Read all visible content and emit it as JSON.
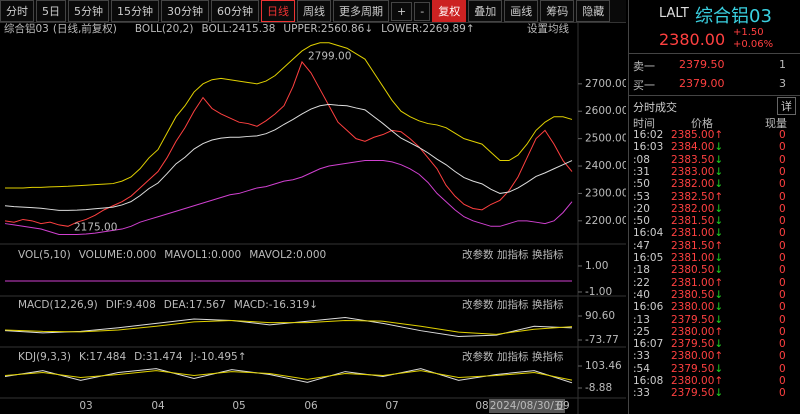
{
  "toolbar": {
    "buttons": [
      "分时",
      "5日",
      "5分钟",
      "15分钟",
      "30分钟",
      "60分钟",
      "日线",
      "周线",
      "更多周期",
      "+",
      "-",
      "复权",
      "叠加",
      "画线",
      "筹码",
      "隐藏"
    ]
  },
  "panel_buttons": [
    "改参数",
    "加指标",
    "换指标"
  ],
  "chart_data": [
    {
      "type": "line",
      "title": "综合铝03",
      "subtitle": "(日线,前复权)",
      "indicator": "BOLL(20,2)",
      "settings_label": "设置均线",
      "categories": [
        null,
        null,
        null,
        null,
        null,
        null,
        null,
        null,
        null,
        "03",
        null,
        null,
        null,
        null,
        null,
        null,
        null,
        "04",
        null,
        null,
        null,
        null,
        null,
        null,
        null,
        null,
        "05",
        null,
        null,
        null,
        null,
        null,
        null,
        null,
        "06",
        null,
        null,
        null,
        null,
        null,
        null,
        null,
        null,
        "07",
        null,
        null,
        null,
        null,
        null,
        null,
        null,
        null,
        null,
        "08",
        null,
        null,
        null,
        null,
        "2024/08/30/五",
        null,
        null,
        null,
        "09",
        null
      ],
      "series": [
        {
          "color": "#ff4040",
          "values": [
            2200,
            2195,
            2205,
            2200,
            2190,
            2195,
            2185,
            2180,
            2195,
            2205,
            2220,
            2240,
            2255,
            2270,
            2290,
            2320,
            2350,
            2380,
            2430,
            2490,
            2540,
            2600,
            2650,
            2610,
            2590,
            2575,
            2560,
            2555,
            2545,
            2565,
            2590,
            2620,
            2690,
            2780,
            2740,
            2680,
            2620,
            2560,
            2530,
            2500,
            2490,
            2505,
            2515,
            2530,
            2525,
            2500,
            2470,
            2430,
            2390,
            2330,
            2290,
            2260,
            2245,
            2240,
            2260,
            2275,
            2310,
            2360,
            2430,
            2500,
            2530,
            2480,
            2420,
            2380
          ]
        },
        {
          "name": "BOLL:2415.38",
          "color": "#dddddd",
          "values": [
            2255,
            2252,
            2250,
            2248,
            2246,
            2242,
            2238,
            2238,
            2239,
            2241,
            2244,
            2247,
            2250,
            2258,
            2270,
            2292,
            2318,
            2338,
            2372,
            2408,
            2432,
            2462,
            2482,
            2495,
            2502,
            2505,
            2505,
            2508,
            2510,
            2518,
            2532,
            2552,
            2570,
            2590,
            2608,
            2620,
            2625,
            2622,
            2620,
            2612,
            2605,
            2580,
            2555,
            2528,
            2502,
            2485,
            2468,
            2448,
            2425,
            2405,
            2380,
            2358,
            2345,
            2335,
            2315,
            2300,
            2305,
            2320,
            2340,
            2362,
            2375,
            2390,
            2405,
            2420
          ]
        },
        {
          "name": "UPPER:2560.86↓",
          "color": "#e0d000",
          "values": [
            2320,
            2320,
            2320,
            2322,
            2322,
            2324,
            2325,
            2326,
            2328,
            2330,
            2332,
            2334,
            2336,
            2345,
            2360,
            2390,
            2430,
            2460,
            2520,
            2580,
            2620,
            2670,
            2700,
            2715,
            2720,
            2715,
            2710,
            2705,
            2700,
            2710,
            2730,
            2760,
            2790,
            2820,
            2840,
            2850,
            2850,
            2840,
            2830,
            2810,
            2790,
            2740,
            2690,
            2640,
            2600,
            2580,
            2565,
            2555,
            2550,
            2540,
            2520,
            2500,
            2490,
            2480,
            2450,
            2420,
            2420,
            2440,
            2480,
            2530,
            2560,
            2580,
            2580,
            2570
          ]
        },
        {
          "name": "LOWER:2269.89↑",
          "color": "#d040d0",
          "values": [
            2190,
            2185,
            2180,
            2175,
            2170,
            2160,
            2150,
            2150,
            2150,
            2152,
            2155,
            2160,
            2165,
            2170,
            2180,
            2195,
            2205,
            2215,
            2225,
            2235,
            2245,
            2255,
            2265,
            2275,
            2285,
            2295,
            2300,
            2310,
            2320,
            2325,
            2335,
            2345,
            2350,
            2360,
            2375,
            2390,
            2400,
            2405,
            2410,
            2415,
            2420,
            2420,
            2420,
            2415,
            2405,
            2390,
            2370,
            2340,
            2300,
            2270,
            2240,
            2215,
            2200,
            2190,
            2180,
            2180,
            2190,
            2200,
            2200,
            2195,
            2190,
            2200,
            2230,
            2270
          ]
        }
      ],
      "annotations": [
        {
          "value": 2799,
          "label": "2799.00"
        },
        {
          "value": 2175,
          "label": "2175.00"
        }
      ],
      "ylim": [
        2130,
        2860
      ],
      "yticks": [
        {
          "value": 2200,
          "label": "2200.00"
        },
        {
          "value": 2300,
          "label": "2300.00"
        },
        {
          "value": 2400,
          "label": "2400.00"
        },
        {
          "value": 2500,
          "label": "2500.00"
        },
        {
          "value": 2600,
          "label": "2600.00"
        },
        {
          "value": 2700,
          "label": "2700.00"
        }
      ]
    },
    {
      "type": "line",
      "title": "VOL(5,10)",
      "legend": [
        {
          "text": "VOLUME:0.000",
          "color": "#dddddd"
        },
        {
          "text": "MAVOL1:0.000",
          "color": "#e0d000"
        },
        {
          "text": "MAVOL2:0.000",
          "color": "#d040d0"
        }
      ],
      "series": [],
      "ylim": [
        -1.31,
        2.38
      ],
      "yticks": [
        {
          "value": 1,
          "label": "1.00"
        },
        {
          "value": -1,
          "label": "-1.00"
        }
      ]
    },
    {
      "type": "line",
      "title": "MACD(12,26,9)",
      "legend": [
        {
          "text": "DIF:9.408",
          "color": "#dddddd"
        },
        {
          "text": "DEA:17.567",
          "color": "#e0d000"
        },
        {
          "text": "MACD:-16.319↓",
          "color": "#d040d0"
        }
      ],
      "series": [
        {
          "color": "#dddddd",
          "values": [
            -10,
            -25,
            -15,
            10,
            40,
            70,
            60,
            30,
            55,
            80,
            40,
            -10,
            -50,
            -40,
            20,
            9.4
          ]
        },
        {
          "color": "#e0d000",
          "values": [
            -5,
            -15,
            -18,
            -5,
            20,
            50,
            60,
            45,
            45,
            60,
            55,
            20,
            -20,
            -35,
            0,
            17.6
          ]
        }
      ],
      "ylim": [
        -128.6,
        213.9
      ],
      "yticks": [
        {
          "value": 90.6,
          "label": "90.60"
        },
        -73.77
      ]
    },
    {
      "type": "line",
      "title": "KDJ(9,3,3)",
      "legend": [
        {
          "text": "K:17.484",
          "color": "#dddddd"
        },
        {
          "text": "D:31.474",
          "color": "#e0d000"
        },
        {
          "text": "J:-10.495↑",
          "color": "#d040d0"
        }
      ],
      "series": [
        {
          "color": "#dddddd",
          "values": [
            50,
            80,
            30,
            70,
            90,
            40,
            85,
            60,
            20,
            75,
            50,
            90,
            30,
            60,
            80,
            17.5
          ]
        },
        {
          "color": "#e0d000",
          "values": [
            55,
            70,
            45,
            60,
            80,
            55,
            75,
            65,
            35,
            65,
            55,
            80,
            45,
            55,
            70,
            31.5
          ]
        }
      ],
      "ylim": [
        -70.2,
        185.2
      ],
      "yticks": [
        103.46,
        -8.88
      ]
    }
  ],
  "quote": {
    "code": "LALT",
    "name": "综合铝03",
    "price": "2380.00",
    "change": "+1.50",
    "change_pct": "+0.06%",
    "book": [
      [
        "卖一",
        "2379.50",
        "1"
      ],
      [
        "买一",
        "2379.00",
        "3"
      ]
    ],
    "trades_title": "分时成交",
    "detail": "详",
    "headers": [
      "时间",
      "价格",
      "现量"
    ],
    "trades": [
      [
        "16:02",
        "2385.00↑",
        0
      ],
      [
        "16:03",
        "2384.00↓",
        0
      ],
      [
        ":08",
        "2383.50↓",
        0
      ],
      [
        ":31",
        "2383.00↓",
        0
      ],
      [
        ":50",
        "2382.00↓",
        0
      ],
      [
        ":53",
        "2382.50↑",
        0
      ],
      [
        ":20",
        "2382.00↓",
        0
      ],
      [
        ":50",
        "2381.50↓",
        0
      ],
      [
        "16:04",
        "2381.00↓",
        0
      ],
      [
        ":47",
        "2381.50↑",
        0
      ],
      [
        "16:05",
        "2381.00↓",
        0
      ],
      [
        ":18",
        "2380.50↓",
        0
      ],
      [
        ":22",
        "2381.00↑",
        0
      ],
      [
        ":40",
        "2380.50↓",
        0
      ],
      [
        "16:06",
        "2380.00↓",
        0
      ],
      [
        ":13",
        "2379.50↓",
        0
      ],
      [
        ":25",
        "2380.00↑",
        0
      ],
      [
        "16:07",
        "2379.50↓",
        0
      ],
      [
        ":33",
        "2380.00↑",
        0
      ],
      [
        ":54",
        "2379.50↓",
        0
      ],
      [
        "16:08",
        "2380.00↑",
        0
      ],
      [
        ":33",
        "2379.50↓",
        0
      ]
    ]
  }
}
